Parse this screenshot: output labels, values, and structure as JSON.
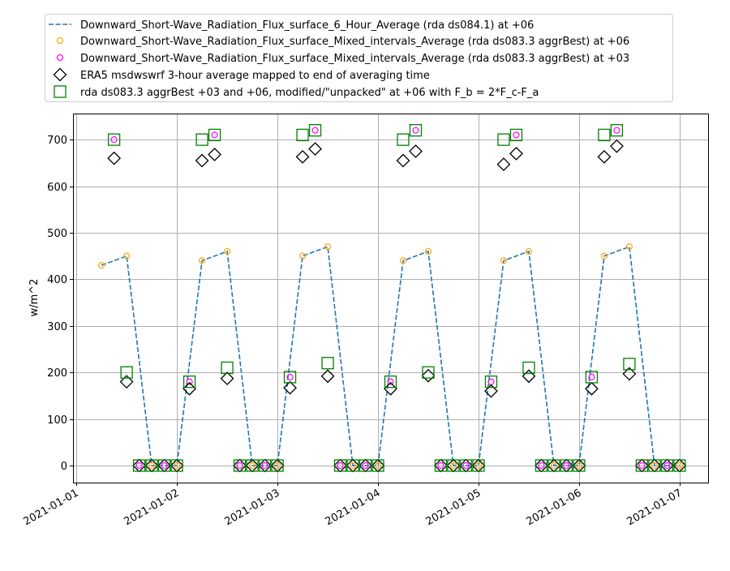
{
  "chart_data": {
    "type": "line",
    "title": "",
    "xlabel": "",
    "ylabel": "w/m^2",
    "x_units": "hours since 2021-01-01 00:00",
    "xlim": [
      -0.8,
      150.8
    ],
    "ylim": [
      -36.6,
      756
    ],
    "grid": true,
    "legend_placement": "top-center (outside axes)",
    "x_ticks": [
      {
        "value": 0,
        "label": "2021-01-01"
      },
      {
        "value": 24,
        "label": "2021-01-02"
      },
      {
        "value": 48,
        "label": "2021-01-03"
      },
      {
        "value": 72,
        "label": "2021-01-04"
      },
      {
        "value": 96,
        "label": "2021-01-05"
      },
      {
        "value": 120,
        "label": "2021-01-06"
      },
      {
        "value": 144,
        "label": "2021-01-07"
      }
    ],
    "y_ticks": [
      0,
      100,
      200,
      300,
      400,
      500,
      600,
      700
    ],
    "series": [
      {
        "name": "Downward_Short-Wave_Radiation_Flux_surface_6_Hour_Average (rda ds084.1) at +06",
        "style": "dashed-line",
        "color": "#1f77b4",
        "x": [
          6,
          12,
          18,
          24,
          30,
          36,
          42,
          48,
          54,
          60,
          66,
          72,
          78,
          84,
          90,
          96,
          102,
          108,
          114,
          120,
          126,
          132,
          138,
          144
        ],
        "y": [
          430,
          450,
          0,
          0,
          440,
          460,
          0,
          0,
          450,
          470,
          0,
          0,
          440,
          460,
          0,
          0,
          440,
          460,
          0,
          0,
          450,
          470,
          0,
          0
        ]
      },
      {
        "name": "Downward_Short-Wave_Radiation_Flux_surface_Mixed_intervals_Average (rda ds083.3 aggrBest) at +06",
        "style": "circle",
        "color": "#ffa500",
        "x": [
          6,
          12,
          18,
          24,
          30,
          36,
          42,
          48,
          54,
          60,
          66,
          72,
          78,
          84,
          90,
          96,
          102,
          108,
          114,
          120,
          126,
          132,
          138,
          144
        ],
        "y": [
          430,
          450,
          0,
          0,
          440,
          460,
          0,
          0,
          450,
          470,
          0,
          0,
          440,
          460,
          0,
          0,
          440,
          460,
          0,
          0,
          450,
          470,
          0,
          0
        ]
      },
      {
        "name": "Downward_Short-Wave_Radiation_Flux_surface_Mixed_intervals_Average (rda ds083.3 aggrBest) at +03",
        "style": "circle",
        "color": "#ff00ff",
        "x": [
          9,
          15,
          21,
          27,
          33,
          39,
          45,
          51,
          57,
          63,
          69,
          75,
          81,
          87,
          93,
          99,
          105,
          111,
          117,
          123,
          129,
          135,
          141
        ],
        "y": [
          700,
          0,
          0,
          180,
          710,
          0,
          0,
          190,
          720,
          0,
          0,
          180,
          720,
          0,
          0,
          180,
          710,
          0,
          0,
          190,
          720,
          0,
          0
        ]
      },
      {
        "name": "ERA5 msdwswrf 3-hour average mapped to end of averaging time",
        "style": "diamond",
        "color": "#000000",
        "x": [
          9,
          12,
          15,
          18,
          21,
          24,
          27,
          30,
          33,
          36,
          39,
          42,
          45,
          48,
          51,
          54,
          57,
          60,
          63,
          66,
          69,
          72,
          75,
          78,
          81,
          84,
          87,
          90,
          93,
          96,
          99,
          102,
          105,
          108,
          111,
          114,
          117,
          120,
          123,
          126,
          129,
          132,
          135,
          138,
          141,
          144
        ],
        "y": [
          660,
          180,
          0,
          0,
          0,
          0,
          165,
          655,
          668,
          187,
          0,
          0,
          0,
          0,
          167,
          663,
          680,
          192,
          0,
          0,
          0,
          0,
          165,
          655,
          675,
          193,
          0,
          0,
          0,
          0,
          160,
          647,
          670,
          192,
          0,
          0,
          0,
          0,
          165,
          663,
          686,
          197,
          0,
          0,
          0,
          0
        ]
      },
      {
        "name": "rda ds083.3 aggrBest +03 and +06, modified/\"unpacked\" at +06 with F_b = 2*F_c-F_a",
        "style": "square",
        "color": "#008000",
        "x": [
          9,
          12,
          15,
          18,
          21,
          24,
          27,
          30,
          33,
          36,
          39,
          42,
          45,
          48,
          51,
          54,
          57,
          60,
          63,
          66,
          69,
          72,
          75,
          78,
          81,
          84,
          87,
          90,
          93,
          96,
          99,
          102,
          105,
          108,
          111,
          114,
          117,
          120,
          123,
          126,
          129,
          132,
          135,
          138,
          141,
          144
        ],
        "y": [
          700,
          200,
          0,
          0,
          0,
          0,
          180,
          700,
          710,
          210,
          0,
          0,
          0,
          0,
          190,
          710,
          720,
          220,
          0,
          0,
          0,
          0,
          180,
          700,
          720,
          200,
          0,
          0,
          0,
          0,
          180,
          700,
          710,
          210,
          0,
          0,
          0,
          0,
          190,
          710,
          720,
          218,
          0,
          0,
          0,
          0
        ]
      }
    ]
  }
}
